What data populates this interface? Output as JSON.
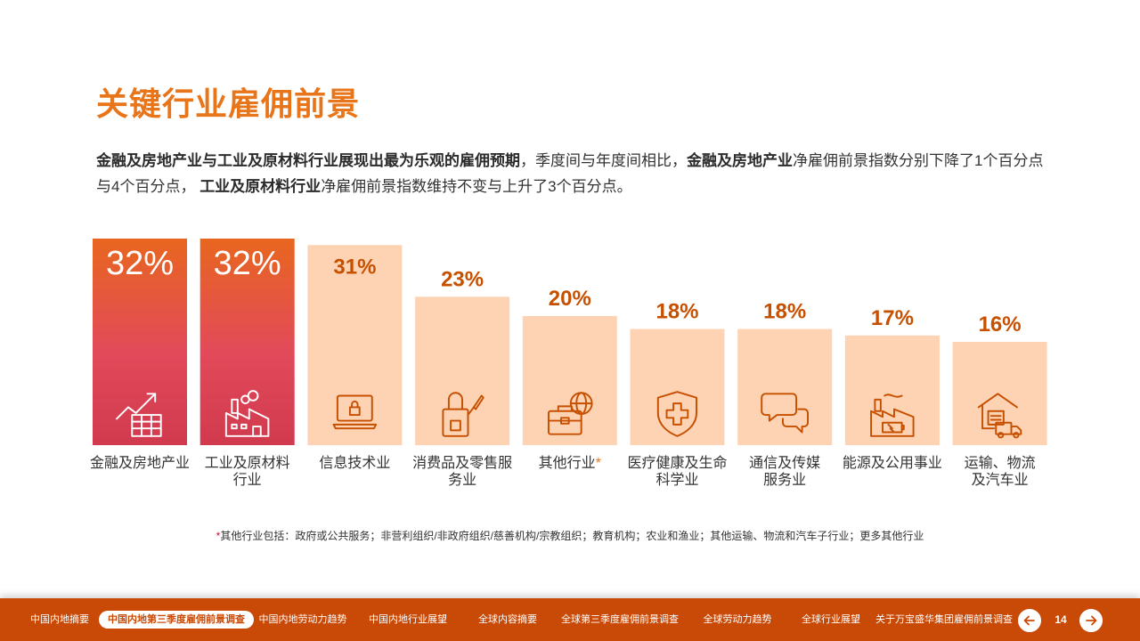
{
  "title": "关键行业雇佣前景",
  "intro": {
    "p1_bold": "金融及房地产业与工业及原材料行业展现出最为乐观的雇佣预期",
    "p2": "，季度间与年度间相比，",
    "p3_bold": "金融及房地产业",
    "p4": "净雇佣前景指数分别下降了1个百分点与4个百分点， ",
    "p5_bold": "工业及原材料行业",
    "p6": "净雇佣前景指数维持不变与上升了3个百分点。"
  },
  "chart_data": {
    "type": "bar",
    "title": "",
    "categories": [
      "金融及房地产业",
      "工业及原材料行业",
      "信息技术业",
      "消费品及零售服务业",
      "其他行业",
      "医疗健康及生命科学业",
      "通信及传媒服务业",
      "能源及公用事业",
      "运输、物流及汽车业"
    ],
    "category_lines": [
      [
        "金融及房地产业"
      ],
      [
        "工业及原材料",
        "行业"
      ],
      [
        "信息技术业"
      ],
      [
        "消费品及零售服",
        "务业"
      ],
      [
        "其他行业"
      ],
      [
        "医疗健康及生命",
        "科学业"
      ],
      [
        "通信及传媒",
        "服务业"
      ],
      [
        "能源及公用事业"
      ],
      [
        "运输、物流",
        "及汽车业"
      ]
    ],
    "values": [
      32,
      32,
      31,
      23,
      20,
      18,
      18,
      17,
      16
    ],
    "value_labels": [
      "32%",
      "32%",
      "31%",
      "23%",
      "20%",
      "18%",
      "18%",
      "17%",
      "16%"
    ],
    "highlight": [
      true,
      true,
      false,
      false,
      false,
      false,
      false,
      false,
      false
    ],
    "asterisk": [
      false,
      false,
      false,
      false,
      true,
      false,
      false,
      false,
      false
    ],
    "icons": [
      "chart-growth-icon",
      "factory-icon",
      "laptop-lock-icon",
      "shopping-bag-icon",
      "briefcase-globe-icon",
      "medical-shield-icon",
      "chat-bubbles-icon",
      "energy-factory-icon",
      "warehouse-truck-icon"
    ],
    "xlabel": "",
    "ylabel": "",
    "ylim": [
      0,
      32
    ],
    "colors": {
      "highlight_top": "#e8661f",
      "highlight_mid": "#e24a5a",
      "highlight_bottom": "#d13a4e",
      "normal_fill": "#fdd3b4",
      "normal_label": "#c75000",
      "highlight_label": "#ffffff",
      "icon_normal": "#c75000",
      "icon_highlight": "#ffffff"
    }
  },
  "footnote": {
    "star": "*",
    "text": "其他行业包括：政府或公共服务；非营利组织/非政府组织/慈善机构/宗教组织；教育机构；农业和渔业；其他运输、物流和汽车子行业；更多其他行业"
  },
  "nav": {
    "items": [
      "中国内地摘要",
      "中国内地第三季度雇佣前景调查",
      "中国内地劳动力趋势",
      "中国内地行业展望",
      "全球内容摘要",
      "全球第三季度雇佣前景调查",
      "全球劳动力趋势",
      "全球行业展望",
      "关于万宝盛华集团雇佣前景调查"
    ],
    "active_index": 1,
    "page_number": "14",
    "color": "#c94a06"
  }
}
